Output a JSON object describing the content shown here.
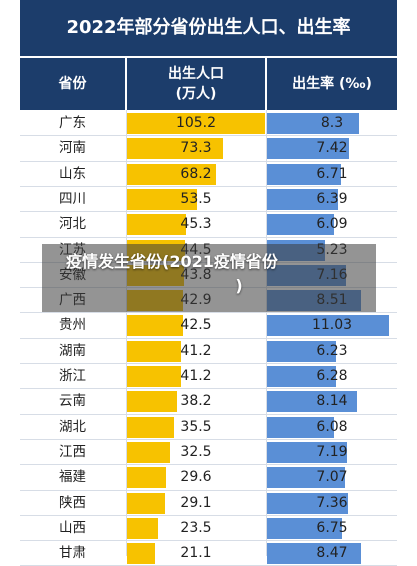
{
  "title": "2022年部分省份出生人口、出生率",
  "headers": {
    "province": "省份",
    "population_line1": "出生人口",
    "population_line2": "(万人)",
    "rate": "出生率 (‰)"
  },
  "banner": {
    "line1": "疫情发生省份(2021疫情省份",
    "line2": ")"
  },
  "colors": {
    "header": "#1c3d6b",
    "population_bar": "#f7c200",
    "rate_bar": "#5a8fd6"
  },
  "chart_data": {
    "type": "table",
    "columns": [
      "省份",
      "出生人口(万人)",
      "出生率(‰)"
    ],
    "rows": [
      {
        "province": "广东",
        "population": "105.2",
        "rate": "8.3"
      },
      {
        "province": "河南",
        "population": "73.3",
        "rate": "7.42"
      },
      {
        "province": "山东",
        "population": "68.2",
        "rate": "6.71"
      },
      {
        "province": "四川",
        "population": "53.5",
        "rate": "6.39"
      },
      {
        "province": "河北",
        "population": "45.3",
        "rate": "6.09"
      },
      {
        "province": "江苏",
        "population": "44.5",
        "rate": "5.23"
      },
      {
        "province": "安徽",
        "population": "43.8",
        "rate": "7.16"
      },
      {
        "province": "广西",
        "population": "42.9",
        "rate": "8.51"
      },
      {
        "province": "贵州",
        "population": "42.5",
        "rate": "11.03"
      },
      {
        "province": "湖南",
        "population": "41.2",
        "rate": "6.23"
      },
      {
        "province": "浙江",
        "population": "41.2",
        "rate": "6.28"
      },
      {
        "province": "云南",
        "population": "38.2",
        "rate": "8.14"
      },
      {
        "province": "湖北",
        "population": "35.5",
        "rate": "6.08"
      },
      {
        "province": "江西",
        "population": "32.5",
        "rate": "7.19"
      },
      {
        "province": "福建",
        "population": "29.6",
        "rate": "7.07"
      },
      {
        "province": "陕西",
        "population": "29.1",
        "rate": "7.36"
      },
      {
        "province": "山西",
        "population": "23.5",
        "rate": "6.75"
      },
      {
        "province": "甘肃",
        "population": "21.1",
        "rate": "8.47"
      }
    ]
  }
}
